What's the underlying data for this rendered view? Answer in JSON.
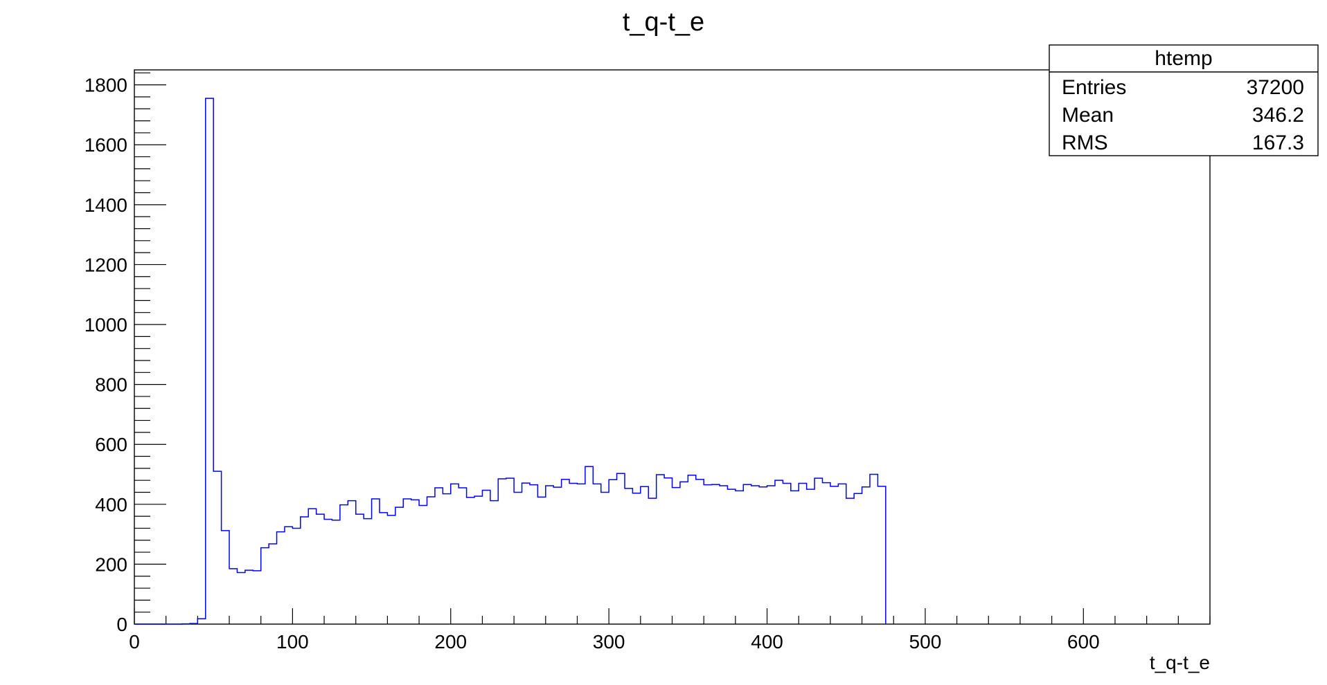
{
  "chart_data": {
    "type": "bar",
    "histogram_style": "step",
    "title": "t_q-t_e",
    "xlabel": "t_q-t_e",
    "ylabel": "",
    "xlim": [
      0,
      680
    ],
    "ylim": [
      0,
      1850
    ],
    "x_ticks": [
      0,
      100,
      200,
      300,
      400,
      500,
      600
    ],
    "x_tick_labels": [
      "0",
      "100",
      "200",
      "300",
      "400",
      "500",
      "600"
    ],
    "y_ticks": [
      0,
      200,
      400,
      600,
      800,
      1000,
      1200,
      1400,
      1600,
      1800
    ],
    "y_tick_labels": [
      "0",
      "200",
      "400",
      "600",
      "800",
      "1000",
      "1200",
      "1400",
      "1600",
      "1800"
    ],
    "grid": false,
    "legend": "none",
    "line_color": "#0000ff",
    "bin_width": 5,
    "bin_start": 0,
    "values": [
      0,
      0,
      0,
      0,
      0,
      0,
      1,
      2,
      18,
      1755,
      510,
      312,
      185,
      172,
      180,
      178,
      255,
      268,
      308,
      325,
      320,
      358,
      385,
      367,
      350,
      347,
      398,
      412,
      367,
      352,
      418,
      372,
      363,
      390,
      418,
      415,
      396,
      425,
      455,
      435,
      468,
      455,
      423,
      427,
      447,
      412,
      485,
      487,
      440,
      471,
      465,
      424,
      462,
      457,
      483,
      470,
      468,
      526,
      468,
      440,
      482,
      503,
      453,
      437,
      459,
      420,
      499,
      488,
      456,
      475,
      497,
      483,
      465,
      466,
      462,
      450,
      445,
      466,
      462,
      458,
      462,
      480,
      470,
      445,
      470,
      450,
      487,
      472,
      460,
      468,
      420,
      436,
      458,
      500,
      460
    ],
    "stats_box": {
      "title": "htemp",
      "rows": [
        {
          "label": "Entries",
          "value": "37200"
        },
        {
          "label": "Mean",
          "value": "346.2"
        },
        {
          "label": "RMS",
          "value": "167.3"
        }
      ]
    }
  }
}
